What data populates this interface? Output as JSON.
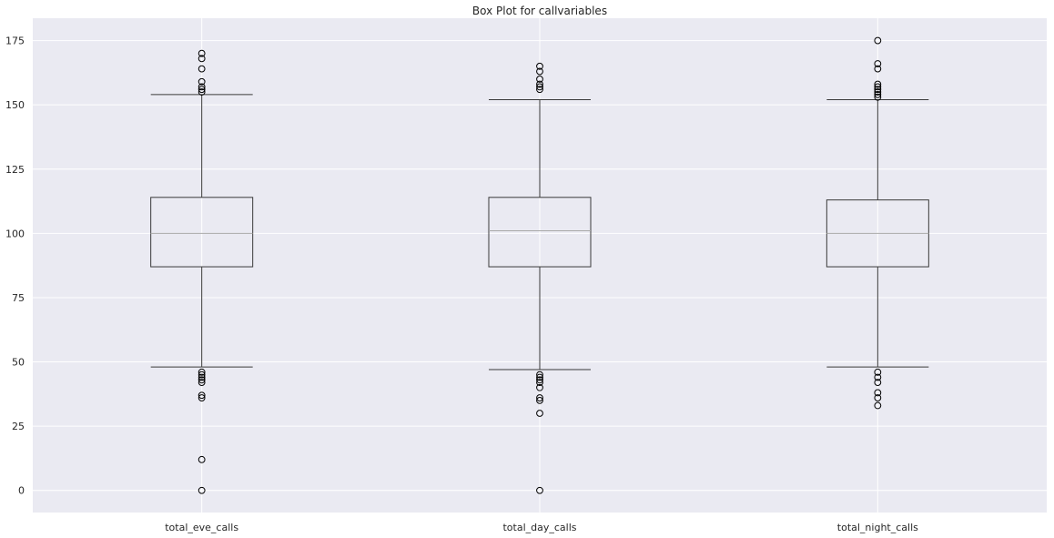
{
  "chart_data": {
    "type": "box",
    "title": "Box Plot for callvariables",
    "xlabel": "",
    "ylabel": "",
    "ylim": [
      -8.6,
      183.7
    ],
    "yticks": [
      0,
      25,
      50,
      75,
      100,
      125,
      150,
      175
    ],
    "grid": true,
    "colors": {
      "plot_background": "#EAEAF2",
      "grid": "#FFFFFF",
      "box": "#3A3A3A",
      "median": "#A8A8A8",
      "text": "#262626"
    },
    "categories": [
      "total_eve_calls",
      "total_day_calls",
      "total_night_calls"
    ],
    "boxes": [
      {
        "name": "total_eve_calls",
        "whisker_low": 48,
        "q1": 87,
        "median": 100,
        "q3": 114,
        "whisker_high": 154,
        "outliers": [
          170,
          168,
          164,
          159,
          157,
          156,
          155,
          46,
          45,
          44,
          43,
          42,
          37,
          36,
          12,
          0
        ]
      },
      {
        "name": "total_day_calls",
        "whisker_low": 47,
        "q1": 87,
        "median": 101,
        "q3": 114,
        "whisker_high": 152,
        "outliers": [
          165,
          163,
          160,
          158,
          157,
          156,
          45,
          44,
          43,
          42,
          40,
          36,
          35,
          30,
          0
        ]
      },
      {
        "name": "total_night_calls",
        "whisker_low": 48,
        "q1": 87,
        "median": 100,
        "q3": 113,
        "whisker_high": 152,
        "outliers": [
          175,
          166,
          164,
          158,
          157,
          156,
          155,
          154,
          153,
          46,
          44,
          42,
          38,
          36,
          33
        ]
      }
    ]
  }
}
